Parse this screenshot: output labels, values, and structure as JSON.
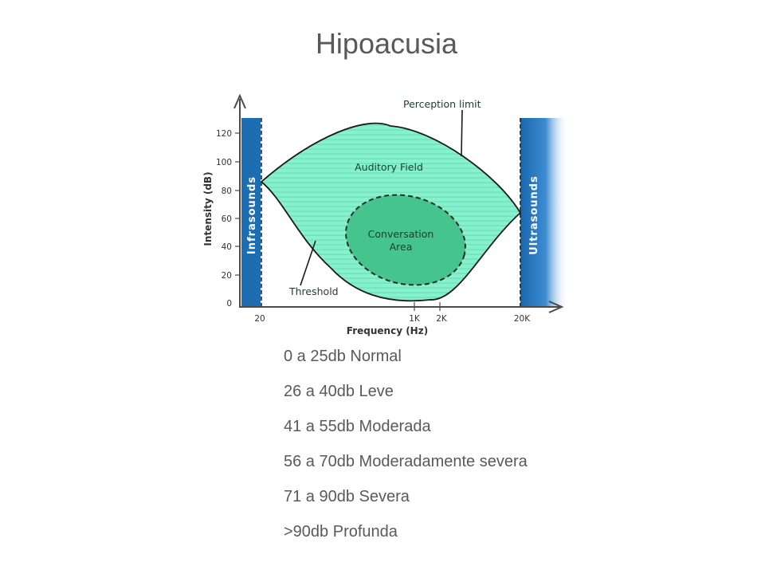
{
  "slide": {
    "title": "Hipoacusia"
  },
  "diagram": {
    "y_axis_title": "Intensity (dB)",
    "x_axis_title": "Frequency (Hz)",
    "y_ticks": [
      "0",
      "20",
      "40",
      "60",
      "80",
      "100",
      "120"
    ],
    "x_ticks": {
      "t20": "20",
      "t1k": "1K",
      "t2k": "2K",
      "t20k": "20K"
    },
    "bands": {
      "left": "Infrasounds",
      "right": "Ultrasounds"
    },
    "regions": {
      "auditory_field": "Auditory Field",
      "conversation_line1": "Conversation",
      "conversation_line2": "Area"
    },
    "annotations": {
      "perception_limit": "Perception limit",
      "threshold": "Threshold"
    },
    "colors": {
      "band_blue": "#1f6fb5",
      "auditory_field": "#7ff0c8",
      "conversation_area": "#3fbf86",
      "axis": "#4a4a4a"
    }
  },
  "hearing_loss_levels": [
    "0 a 25db Normal",
    "26 a 40db Leve",
    "41 a 55db Moderada",
    "56 a 70db Moderadamente severa",
    "71 a 90db Severa",
    ">90db Profunda"
  ]
}
